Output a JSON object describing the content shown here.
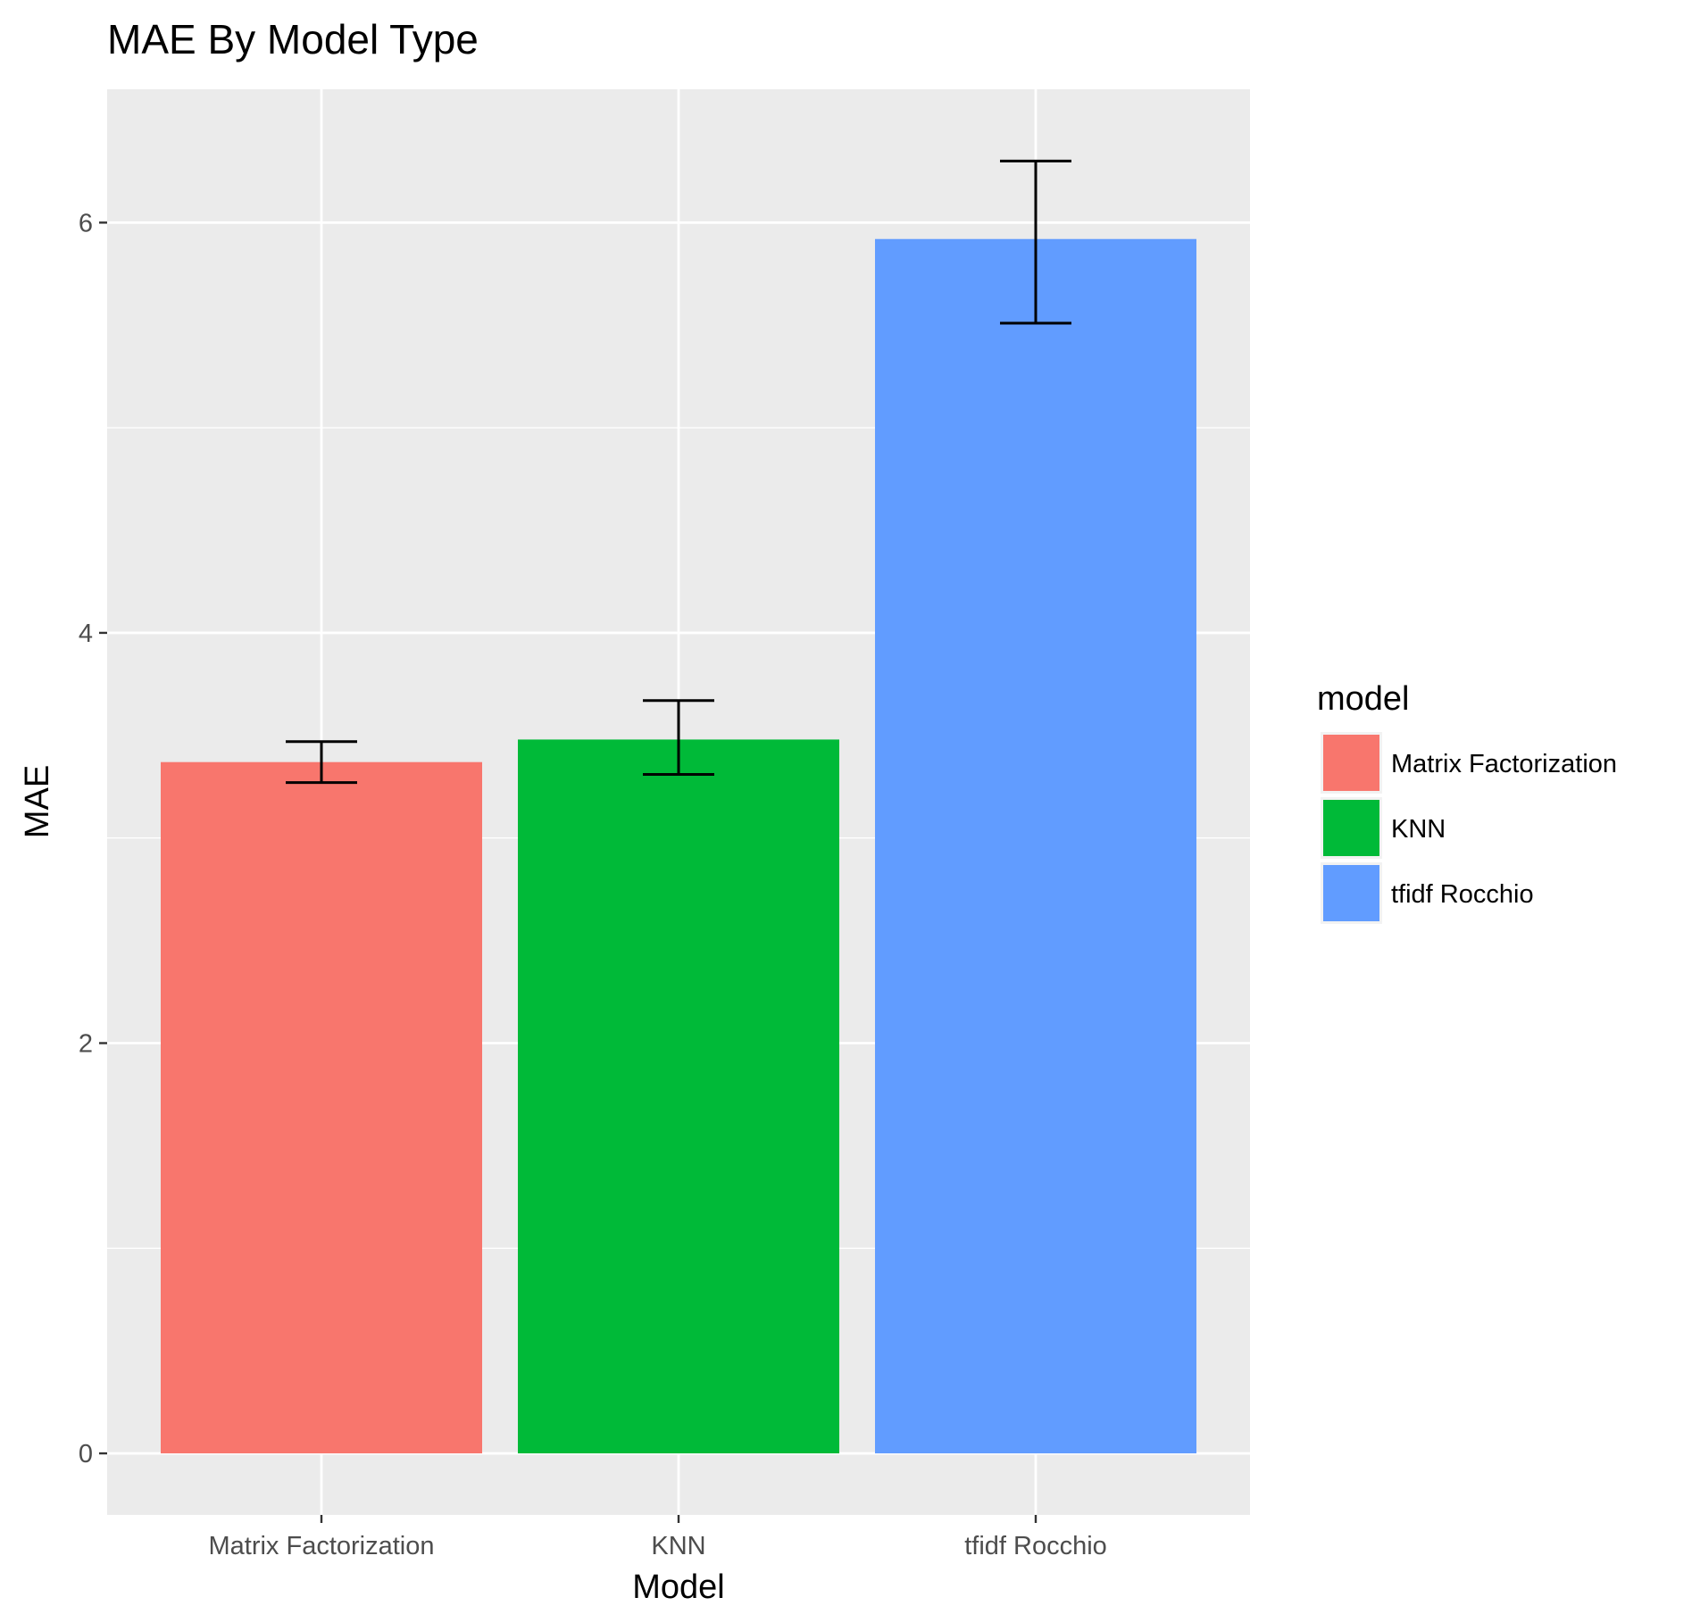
{
  "chart_data": {
    "type": "bar",
    "title": "MAE By Model Type",
    "xlabel": "Model",
    "ylabel": "MAE",
    "categories": [
      "Matrix Factorization",
      "KNN",
      "tfidf Rocchio"
    ],
    "values": [
      3.37,
      3.48,
      5.92
    ],
    "error_bars": [
      {
        "low": 3.27,
        "high": 3.47
      },
      {
        "low": 3.31,
        "high": 3.67
      },
      {
        "low": 5.51,
        "high": 6.3
      }
    ],
    "colors": [
      "#F8766D",
      "#00BA38",
      "#619CFF"
    ],
    "ylim": [
      -0.3,
      6.65
    ],
    "yticks": [
      0,
      2,
      4,
      6
    ],
    "grid": true,
    "panel_background": "#EBEBEB",
    "legend": {
      "title": "model",
      "position": "right",
      "entries": [
        "Matrix Factorization",
        "KNN",
        "tfidf Rocchio"
      ]
    }
  }
}
